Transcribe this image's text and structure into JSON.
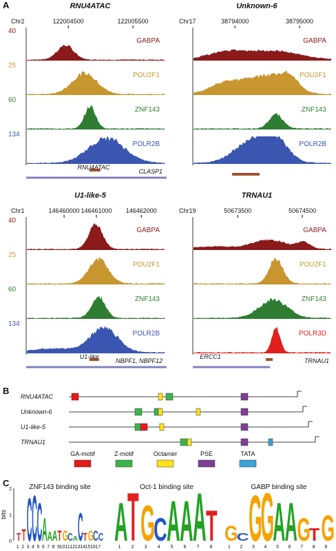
{
  "panel_a": {
    "label": "A",
    "panels": [
      {
        "title": "RNU4ATAC",
        "chrom": "Chr2",
        "coords": [
          "122004500",
          "122005500"
        ],
        "tracks": [
          {
            "name": "GABPA",
            "scale": "40",
            "color": "#8b1a1a"
          },
          {
            "name": "POU2F1",
            "scale": "25",
            "color": "#c8962e"
          },
          {
            "name": "ZNF143",
            "scale": "60",
            "color": "#2e7d32"
          },
          {
            "name": "POLR2B",
            "scale": "134",
            "color": "#3a56b0"
          }
        ],
        "genes": [
          "RNU4ATAC",
          "CLASP1"
        ]
      },
      {
        "title": "Unknown-6",
        "chrom": "Chr17",
        "coords": [
          "38794000",
          "38795000"
        ],
        "tracks": [
          {
            "name": "GABPA",
            "color": "#8b1a1a"
          },
          {
            "name": "POU2F1",
            "color": "#c8962e"
          },
          {
            "name": "ZNF143",
            "color": "#2e7d32"
          },
          {
            "name": "POLR2B",
            "color": "#3a56b0"
          }
        ],
        "genes": []
      },
      {
        "title": "U1-like-5",
        "chrom": "Chr1",
        "coords": [
          "146460000",
          "146461000",
          "146462000"
        ],
        "tracks": [
          {
            "name": "GABPA",
            "scale": "40",
            "color": "#8b1a1a"
          },
          {
            "name": "POU2F1",
            "scale": "25",
            "color": "#c8962e"
          },
          {
            "name": "ZNF143",
            "scale": "60",
            "color": "#2e7d32"
          },
          {
            "name": "POLR2B",
            "scale": "134",
            "color": "#3a56b0"
          }
        ],
        "genes": [
          "U1-like",
          "NBPF1, NBPF12"
        ]
      },
      {
        "title": "TRNAU1",
        "chrom": "Chr19",
        "coords": [
          "50673500",
          "50674500"
        ],
        "tracks": [
          {
            "name": "GABPA",
            "color": "#8b1a1a"
          },
          {
            "name": "POU2F1",
            "color": "#c8962e"
          },
          {
            "name": "ZNF143",
            "color": "#2e7d32"
          },
          {
            "name": "POLR3D",
            "color": "#e0201b"
          }
        ],
        "genes": [
          "ERCC1",
          "TRNAU1"
        ]
      }
    ]
  },
  "panel_b": {
    "label": "B",
    "rows": [
      "RNU4ATAC",
      "Unknown-6",
      "U1-like-5",
      "TRNAU1"
    ],
    "legend": [
      {
        "name": "GA-motif",
        "color": "#e41a1c"
      },
      {
        "name": "Z-motif",
        "color": "#3cb44b"
      },
      {
        "name": "Octamer",
        "color": "#ffe119"
      },
      {
        "name": "PSE",
        "color": "#7e3f98"
      },
      {
        "name": "TATA",
        "color": "#3ba3d8"
      }
    ]
  },
  "panel_c": {
    "label": "C",
    "y_label": "bits",
    "yticks": [
      "0",
      "1",
      "2"
    ],
    "logos": [
      {
        "title": "ZNF143 binding site",
        "letters": [
          "T",
          "T",
          "C",
          "C",
          "C",
          "A",
          "A",
          "A",
          "T",
          "G",
          "C",
          "A",
          "C",
          "T",
          "G",
          "C",
          "C"
        ],
        "heights": [
          0.3,
          0.45,
          1.7,
          1.8,
          1.5,
          0.9,
          0.35,
          0.4,
          0.4,
          0.4,
          0.3,
          0.2,
          1.1,
          0.3,
          0.4,
          0.4,
          0.3
        ],
        "positions": [
          1,
          2,
          3,
          4,
          5,
          6,
          7,
          8,
          9,
          10,
          11,
          12,
          13,
          14,
          15,
          16,
          17
        ]
      },
      {
        "title": "Oct-1 binding site",
        "letters": [
          "A",
          "T",
          "G",
          "C",
          "A",
          "A",
          "A",
          "T"
        ],
        "heights": [
          1.5,
          1.9,
          1.4,
          0.9,
          1.6,
          1.6,
          1.9,
          1.2
        ],
        "positions": [
          1,
          2,
          3,
          4,
          5,
          6,
          7,
          8
        ]
      },
      {
        "title": "GABP binding site",
        "letters": [
          "G",
          "C",
          "G",
          "G",
          "A",
          "A",
          "G",
          "T",
          "G"
        ],
        "heights": [
          0.6,
          0.3,
          1.8,
          1.9,
          1.5,
          1.5,
          0.9,
          0.5,
          1.0
        ],
        "positions": [
          1,
          2,
          3,
          4,
          5,
          6,
          7,
          8,
          9
        ]
      }
    ]
  }
}
